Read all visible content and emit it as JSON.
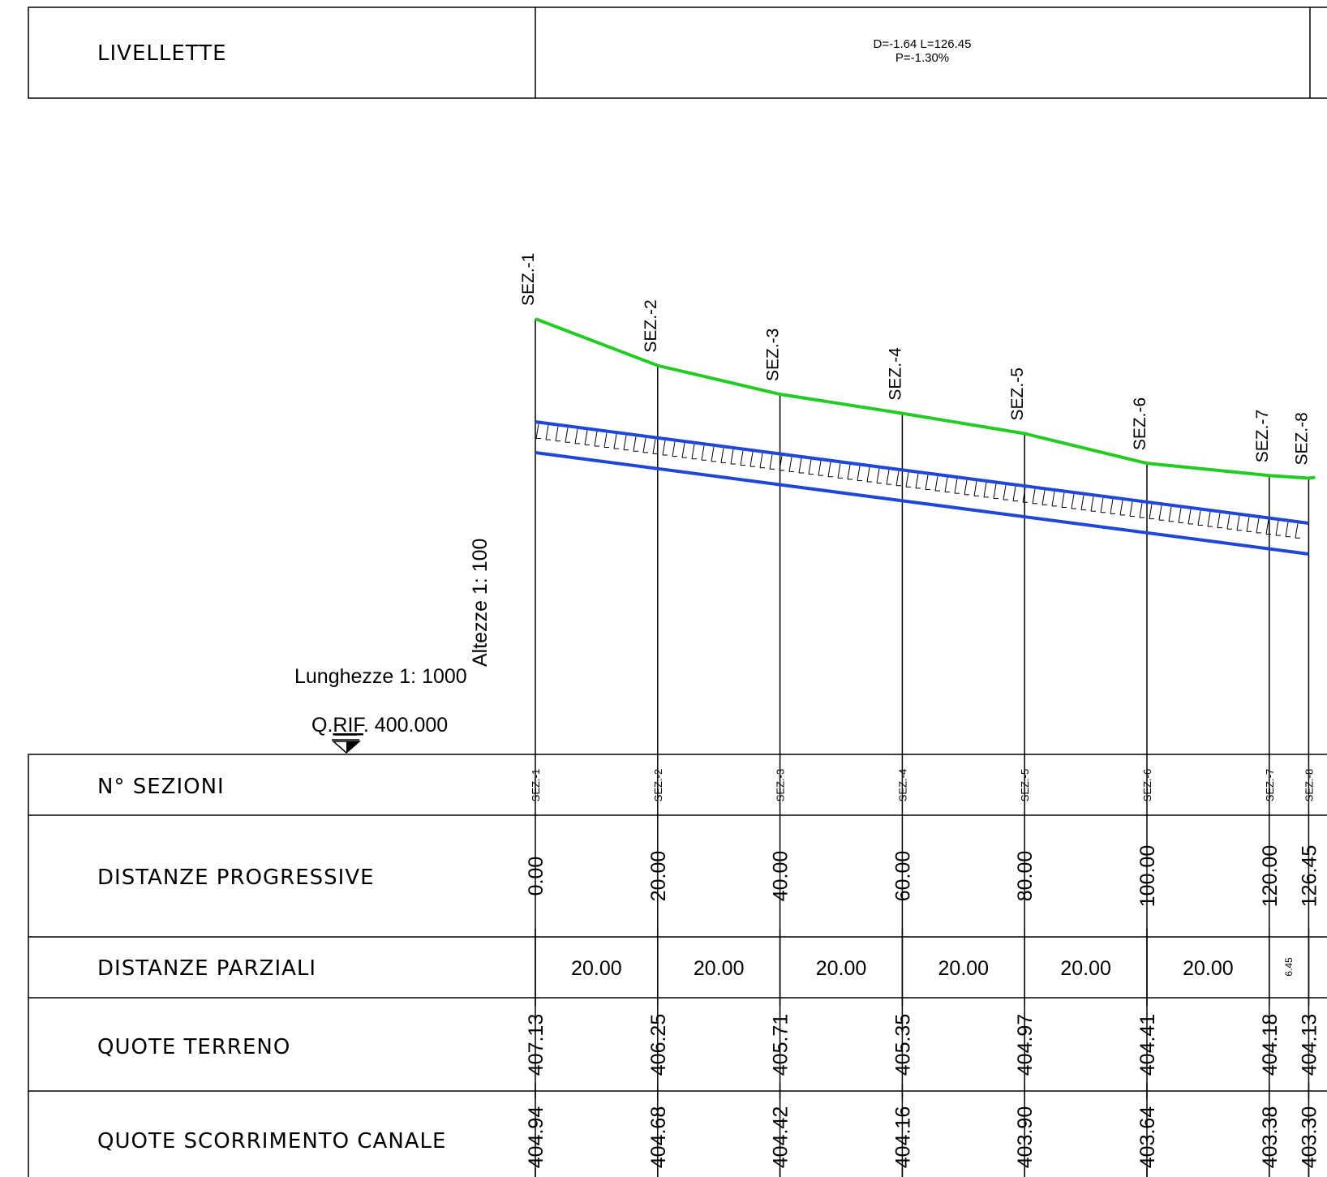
{
  "livellette": {
    "label": "LIVELLETTE",
    "line1": "D=-1.64 L=126.45",
    "line2": "P=-1.30%"
  },
  "scale": {
    "lengths": "Lunghezze 1: 1000",
    "heights": "Altezze 1: 100",
    "q_rif_prefix": "Q.",
    "q_rif_underlined": "RIF",
    "q_rif_value": ". 400.000"
  },
  "rows": {
    "sezioni": "N° SEZIONI",
    "progressive": "DISTANZE PROGRESSIVE",
    "parziali": "DISTANZE PARZIALI",
    "terreno": "QUOTE TERRENO",
    "scorrimento": "QUOTE SCORRIMENTO CANALE"
  },
  "sections": [
    {
      "name": "SEZ.-1",
      "progressive": "0.00",
      "terreno": "407.13",
      "scorrimento": "404.94",
      "terreno_value": 407.13,
      "canale_value": 404.94
    },
    {
      "name": "SEZ.-2",
      "progressive": "20.00",
      "terreno": "406.25",
      "scorrimento": "404.68",
      "terreno_value": 406.25,
      "canale_value": 404.68
    },
    {
      "name": "SEZ.-3",
      "progressive": "40.00",
      "terreno": "405.71",
      "scorrimento": "404.42",
      "terreno_value": 405.71,
      "canale_value": 404.42
    },
    {
      "name": "SEZ.-4",
      "progressive": "60.00",
      "terreno": "405.35",
      "scorrimento": "404.16",
      "terreno_value": 405.35,
      "canale_value": 404.16
    },
    {
      "name": "SEZ.-5",
      "progressive": "80.00",
      "terreno": "404.97",
      "scorrimento": "403.90",
      "terreno_value": 404.97,
      "canale_value": 403.9
    },
    {
      "name": "SEZ.-6",
      "progressive": "100.00",
      "terreno": "404.41",
      "scorrimento": "403.64",
      "terreno_value": 404.41,
      "canale_value": 403.64
    },
    {
      "name": "SEZ.-7",
      "progressive": "120.00",
      "terreno": "404.18",
      "scorrimento": "403.38",
      "terreno_value": 404.18,
      "canale_value": 403.38
    },
    {
      "name": "SEZ.-8",
      "progressive": "126.45",
      "terreno": "404.13",
      "scorrimento": "403.30",
      "terreno_value": 404.13,
      "canale_value": 403.3
    }
  ],
  "parziali": [
    "20.00",
    "20.00",
    "20.00",
    "20.00",
    "20.00",
    "20.00",
    "6.45"
  ],
  "colors": {
    "terrain": "#22cc22",
    "channel": "#1e46d8",
    "lines": "#000000"
  }
}
